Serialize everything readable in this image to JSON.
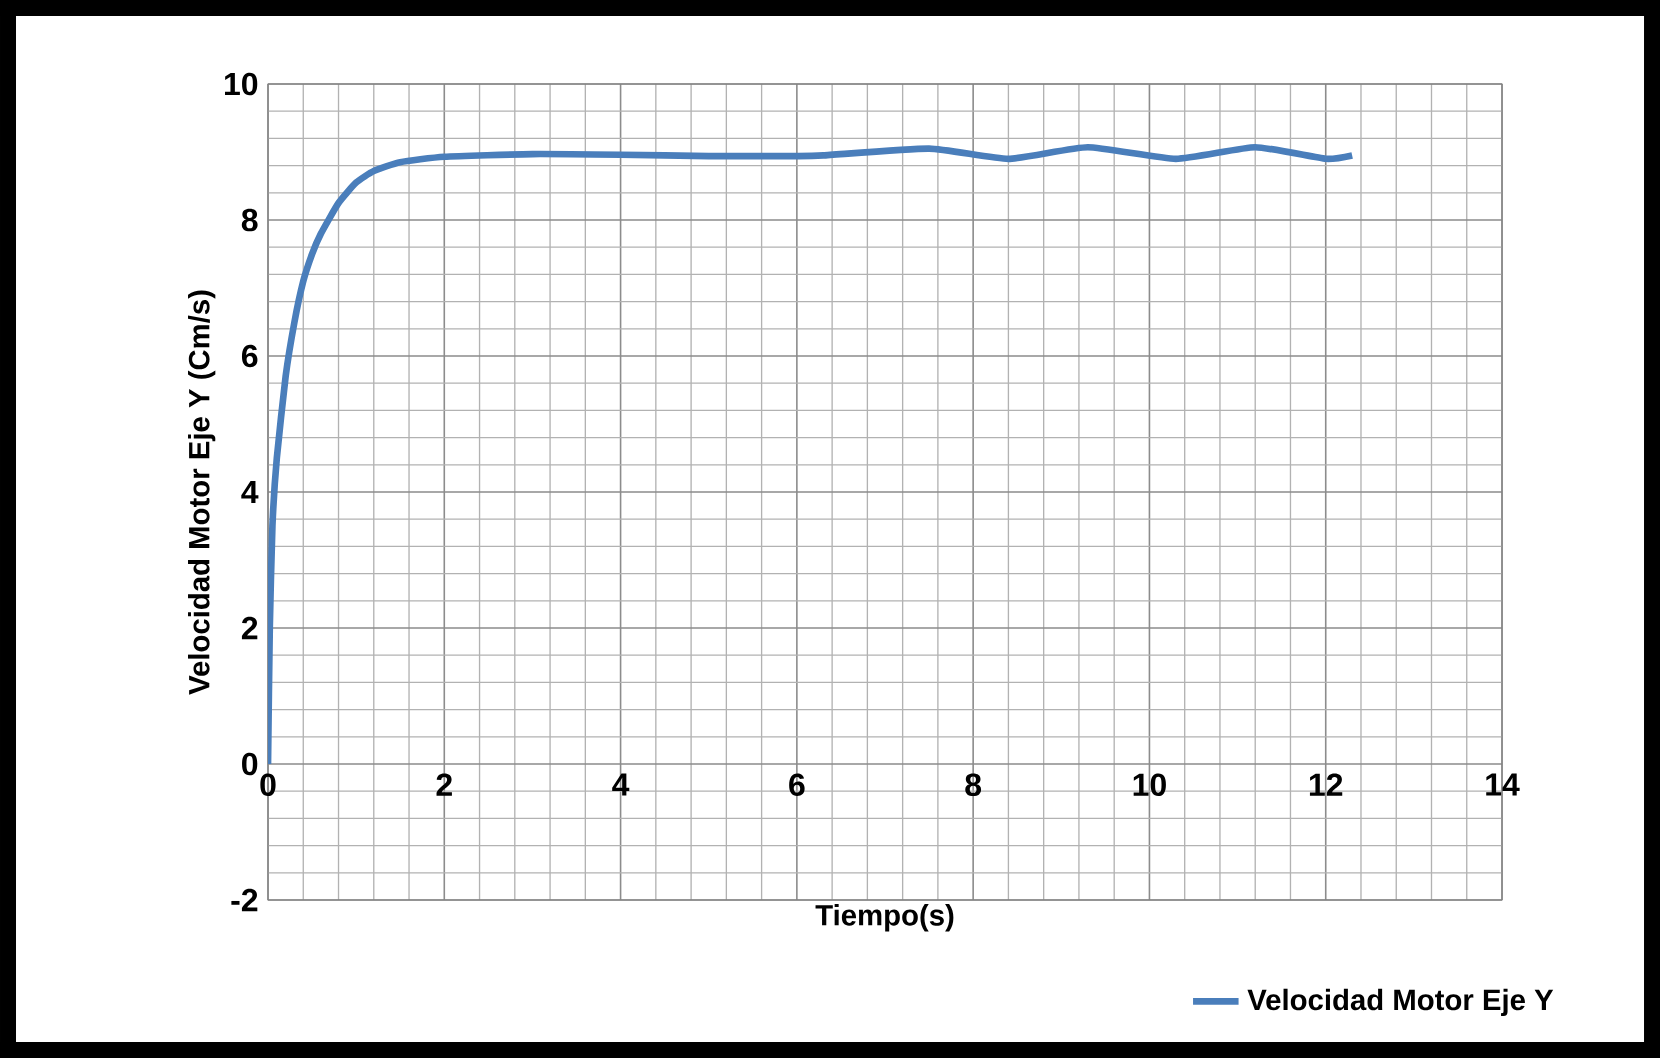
{
  "chart_data": {
    "type": "line",
    "xlabel": "Tiempo(s)",
    "ylabel": "Velocidad Motor Eje Y (Cm/s)",
    "x": [
      0,
      0.02,
      0.05,
      0.1,
      0.2,
      0.3,
      0.4,
      0.5,
      0.6,
      0.8,
      1.0,
      1.2,
      1.5,
      2,
      3,
      4,
      5,
      6,
      6.3,
      7.5,
      8.4,
      9.3,
      10.3,
      11.2,
      12,
      12.3
    ],
    "series": [
      {
        "name": "Velocidad Motor Eje Y",
        "color": "#4a7ebb",
        "values": [
          0,
          2,
          3.5,
          4.5,
          5.7,
          6.5,
          7.1,
          7.5,
          7.8,
          8.25,
          8.55,
          8.72,
          8.85,
          8.93,
          8.97,
          8.96,
          8.94,
          8.94,
          8.95,
          9.05,
          8.9,
          9.07,
          8.9,
          9.07,
          8.9,
          8.95
        ]
      }
    ],
    "xlim": [
      0,
      14
    ],
    "ylim": [
      -2,
      10
    ],
    "xticks": [
      0,
      2,
      4,
      6,
      8,
      10,
      12,
      14
    ],
    "yticks": [
      -2,
      0,
      2,
      4,
      6,
      8,
      10
    ],
    "grid": true,
    "legend": "bottom right",
    "marker": "none",
    "line_style": "solid"
  }
}
